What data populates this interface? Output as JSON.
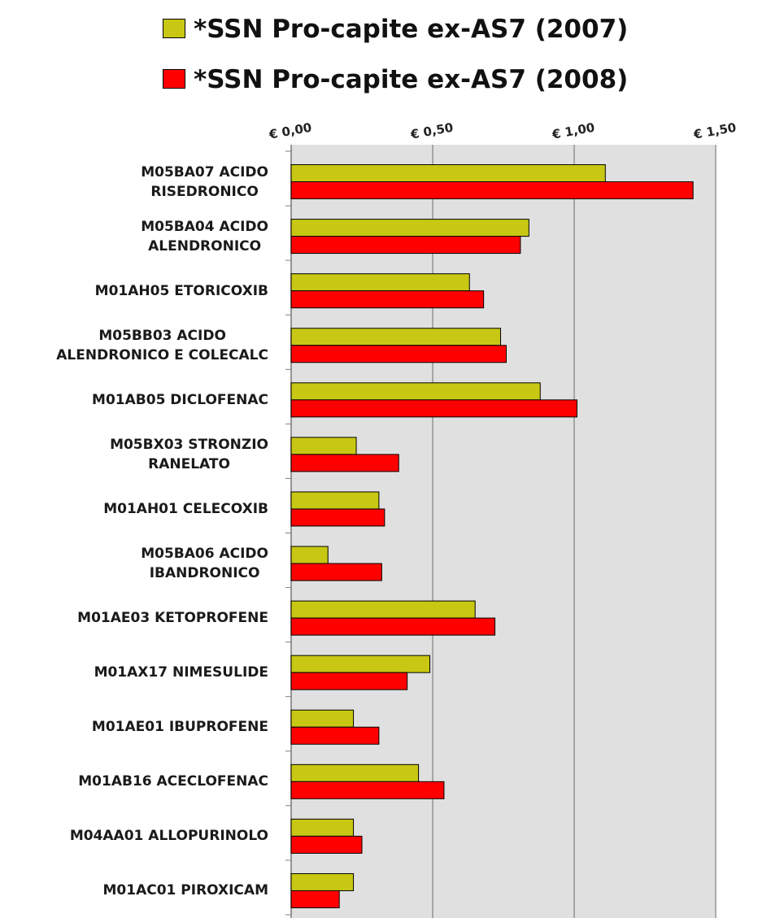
{
  "chart_data": {
    "type": "hbar",
    "categories": [
      "M05BA07 ACIDO\nRISEDRONICO",
      "M05BA04 ACIDO\nALENDRONICO",
      "M01AH05 ETORICOXIB",
      "M05BB03 ACIDO\nALENDRONICO E COLECALC",
      "M01AB05 DICLOFENAC",
      "M05BX03 STRONZIO\nRANELATO",
      "M01AH01 CELECOXIB",
      "M05BA06 ACIDO\nIBANDRONICO",
      "M01AE03 KETOPROFENE",
      "M01AX17 NIMESULIDE",
      "M01AE01 IBUPROFENE",
      "M01AB16 ACECLOFENAC",
      "M04AA01 ALLOPURINOLO",
      "M01AC01 PIROXICAM"
    ],
    "series": [
      {
        "name": "*SSN Pro-capite ex-AS7 (2007)",
        "color": "#c8c814",
        "values": [
          1.11,
          0.84,
          0.63,
          0.74,
          0.88,
          0.23,
          0.31,
          0.13,
          0.65,
          0.49,
          0.22,
          0.45,
          0.22,
          0.22
        ]
      },
      {
        "name": "*SSN Pro-capite ex-AS7 (2008)",
        "color": "#ff0000",
        "values": [
          1.42,
          0.81,
          0.68,
          0.76,
          1.01,
          0.38,
          0.33,
          0.32,
          0.72,
          0.41,
          0.31,
          0.54,
          0.25,
          0.17
        ]
      }
    ],
    "xlim": [
      0,
      1.5
    ],
    "xticks": [
      {
        "value": 0,
        "label": "€ 0,00"
      },
      {
        "value": 0.5,
        "label": "€ 0,50"
      },
      {
        "value": 1,
        "label": "€ 1,00"
      },
      {
        "value": 1.5,
        "label": "€ 1,50"
      }
    ],
    "grid": true,
    "legend": "top"
  }
}
